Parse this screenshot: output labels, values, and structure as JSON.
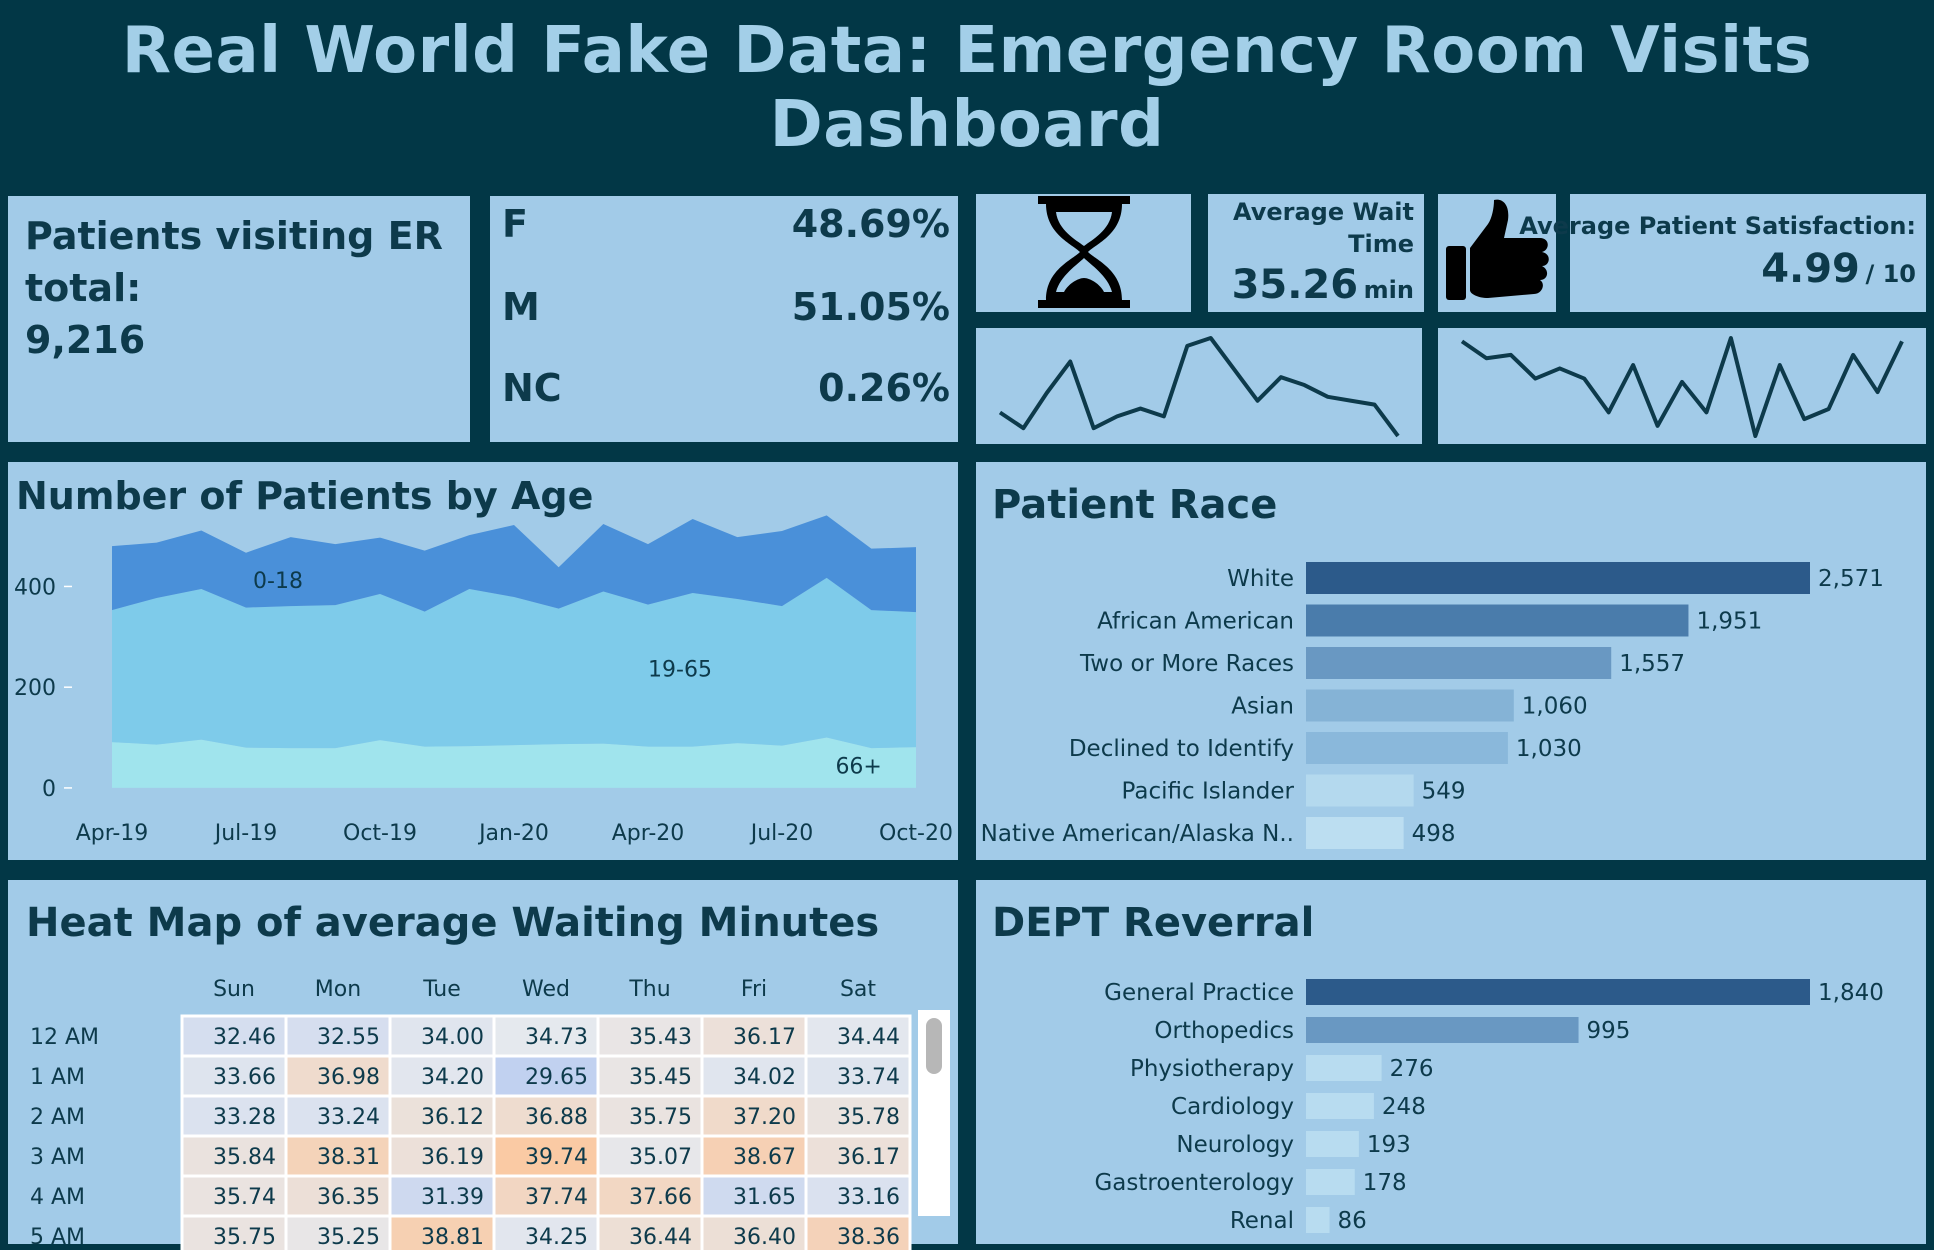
{
  "title": "Real World Fake Data: Emergency Room Visits Dashboard",
  "total": {
    "label_line1": "Patients visiting ER",
    "label_line2": "total:",
    "value": "9,216"
  },
  "gender": [
    {
      "label": "F",
      "value": "48.69%"
    },
    {
      "label": "M",
      "value": "51.05%"
    },
    {
      "label": "NC",
      "value": "0.26%"
    }
  ],
  "wait": {
    "label_line1": "Average Wait",
    "label_line2": "Time",
    "value": "35.26",
    "unit": "min",
    "icon": "hourglass-icon"
  },
  "satisfaction": {
    "label": "Average Patient Satisfaction:",
    "value": "4.99",
    "unit": "/ 10",
    "icon": "thumbs-up-icon"
  },
  "colors": {
    "background": "#023746",
    "panel": "#a2cbe8",
    "text": "#0d3a4b",
    "title": "#a3cfe8",
    "band_0_18": "#4a90d9",
    "band_19_65": "#7ecbea",
    "band_66": "#a0e4ed",
    "bar_dark": "#2c5a8a",
    "bar_light": "#c2e1f2"
  },
  "chart_data": [
    {
      "id": "wait_sparkline",
      "type": "line",
      "values": [
        39,
        35,
        44,
        52,
        35,
        38,
        40,
        38,
        56,
        58,
        50,
        42,
        48,
        46,
        43,
        42,
        41,
        33
      ]
    },
    {
      "id": "satisfaction_sparkline",
      "type": "line",
      "values": [
        6.0,
        5.5,
        5.6,
        4.9,
        5.2,
        4.9,
        3.9,
        5.3,
        3.5,
        4.8,
        3.9,
        6.1,
        3.2,
        5.3,
        3.7,
        4.0,
        5.6,
        4.5,
        6.0
      ]
    },
    {
      "id": "patients_by_age",
      "type": "area",
      "title": "Number of Patients by Age",
      "stacked": true,
      "x_ticks": [
        "Apr-19",
        "Jul-19",
        "Oct-19",
        "Jan-20",
        "Apr-20",
        "Jul-20",
        "Oct-20"
      ],
      "y_ticks": [
        0,
        200,
        400
      ],
      "ylim": [
        -20,
        520
      ],
      "x": [
        "Apr-19",
        "May-19",
        "Jun-19",
        "Jul-19",
        "Aug-19",
        "Sep-19",
        "Oct-19",
        "Nov-19",
        "Dec-19",
        "Jan-20",
        "Feb-20",
        "Mar-20",
        "Apr-20",
        "May-20",
        "Jun-20",
        "Jul-20",
        "Aug-20",
        "Sep-20",
        "Oct-20"
      ],
      "series": [
        {
          "name": "66+",
          "values": [
            91,
            86,
            96,
            80,
            79,
            79,
            95,
            82,
            83,
            85,
            87,
            88,
            82,
            82,
            89,
            84,
            100,
            79,
            81
          ]
        },
        {
          "name": "19-65",
          "values": [
            262,
            291,
            299,
            278,
            282,
            284,
            290,
            268,
            312,
            294,
            269,
            302,
            282,
            305,
            286,
            277,
            317,
            274,
            268
          ]
        },
        {
          "name": "0-18",
          "values": [
            127,
            110,
            116,
            109,
            137,
            121,
            112,
            121,
            107,
            143,
            82,
            134,
            120,
            147,
            123,
            149,
            124,
            122,
            129
          ]
        }
      ]
    },
    {
      "id": "patient_race",
      "type": "bar",
      "title": "Patient Race",
      "categories": [
        "White",
        "African American",
        "Two or More Races",
        "Asian",
        "Declined to Identify",
        "Pacific Islander",
        "Native American/Alaska N.."
      ],
      "values": [
        2571,
        1951,
        1557,
        1060,
        1030,
        549,
        498
      ],
      "labels": [
        "2,571",
        "1,951",
        "1,557",
        "1,060",
        "1,030",
        "549",
        "498"
      ]
    },
    {
      "id": "waiting_heatmap",
      "type": "heatmap",
      "title": "Heat Map of average Waiting Minutes",
      "columns": [
        "Sun",
        "Mon",
        "Tue",
        "Wed",
        "Thu",
        "Fri",
        "Sat"
      ],
      "rows": [
        "12 AM",
        "1 AM",
        "2 AM",
        "3 AM",
        "4 AM",
        "5 AM"
      ],
      "values": [
        [
          "32.46",
          "32.55",
          "34.00",
          "34.73",
          "35.43",
          "36.17",
          "34.44"
        ],
        [
          "33.66",
          "36.98",
          "34.20",
          "29.65",
          "35.45",
          "34.02",
          "33.74"
        ],
        [
          "33.28",
          "33.24",
          "36.12",
          "36.88",
          "35.75",
          "37.20",
          "35.78"
        ],
        [
          "35.84",
          "38.31",
          "36.19",
          "39.74",
          "35.07",
          "38.67",
          "36.17"
        ],
        [
          "35.74",
          "36.35",
          "31.39",
          "37.74",
          "37.66",
          "31.65",
          "33.16"
        ],
        [
          "35.75",
          "35.25",
          "38.81",
          "34.25",
          "36.44",
          "36.40",
          "38.36"
        ]
      ]
    },
    {
      "id": "dept_referral",
      "type": "bar",
      "title": "DEPT Reverral",
      "categories": [
        "General Practice",
        "Orthopedics",
        "Physiotherapy",
        "Cardiology",
        "Neurology",
        "Gastroenterology",
        "Renal"
      ],
      "values": [
        1840,
        995,
        276,
        248,
        193,
        178,
        86
      ],
      "labels": [
        "1,840",
        "995",
        "276",
        "248",
        "193",
        "178",
        "86"
      ]
    }
  ]
}
